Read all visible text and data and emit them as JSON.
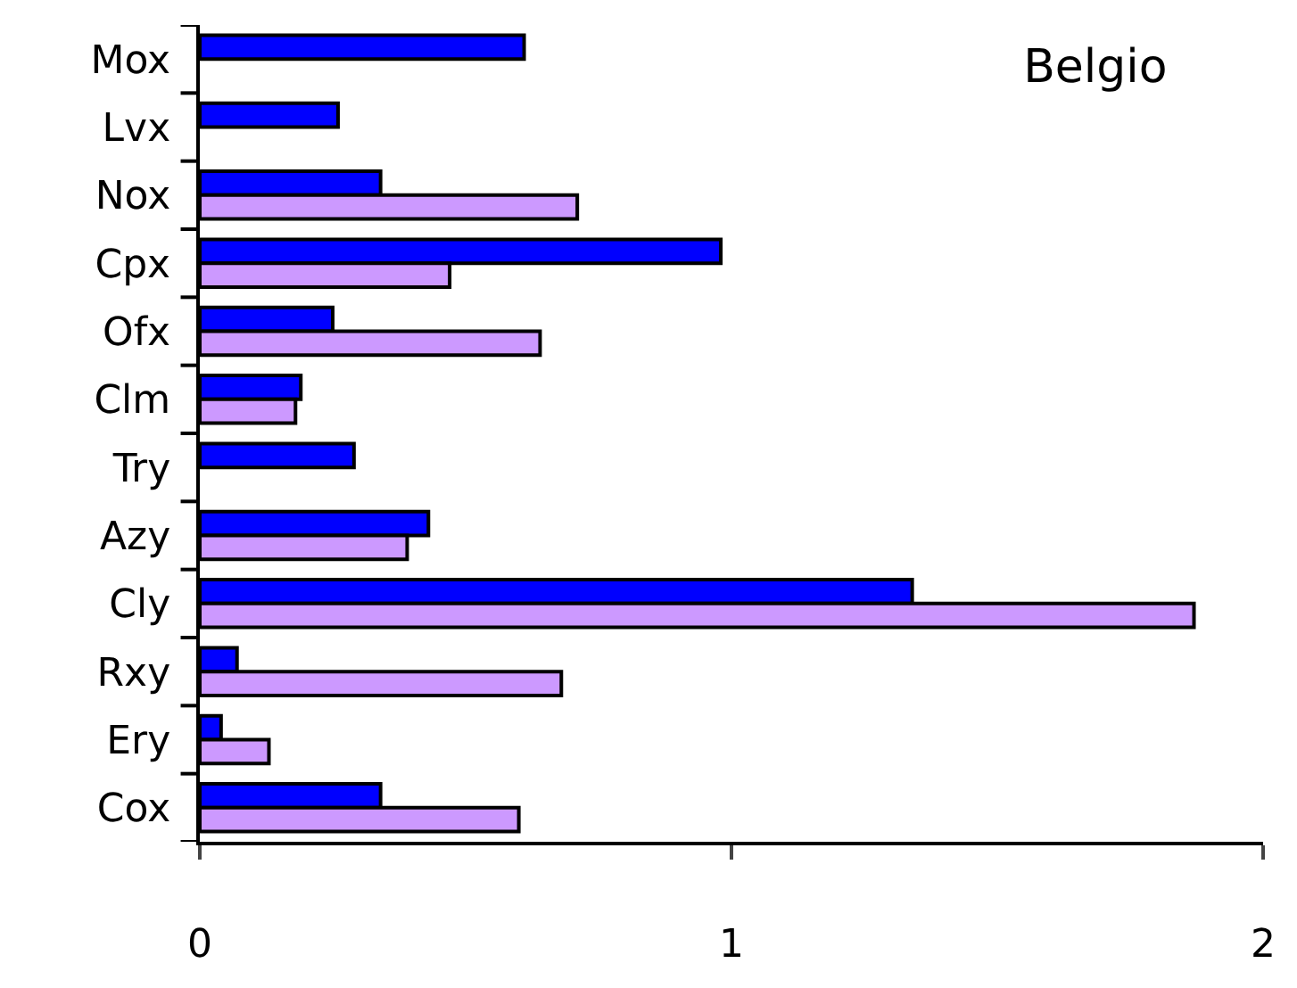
{
  "chart_data": {
    "type": "bar",
    "orientation": "horizontal",
    "title": "Belgio",
    "categories": [
      "Mox",
      "Lvx",
      "Nox",
      "Cpx",
      "Ofx",
      "Clm",
      "Try",
      "Azy",
      "Cly",
      "Rxy",
      "Ery",
      "Cox"
    ],
    "series": [
      {
        "color": "#0000ff",
        "values": [
          0.61,
          0.26,
          0.34,
          0.98,
          0.25,
          0.19,
          0.29,
          0.43,
          1.34,
          0.07,
          0.04,
          0.34
        ]
      },
      {
        "color": "#cc99ff",
        "values": [
          null,
          null,
          0.71,
          0.47,
          0.64,
          0.18,
          null,
          0.39,
          1.87,
          0.68,
          0.13,
          0.6
        ]
      }
    ],
    "xlim": [
      0,
      2
    ],
    "xticks": [
      0,
      1,
      2
    ]
  }
}
